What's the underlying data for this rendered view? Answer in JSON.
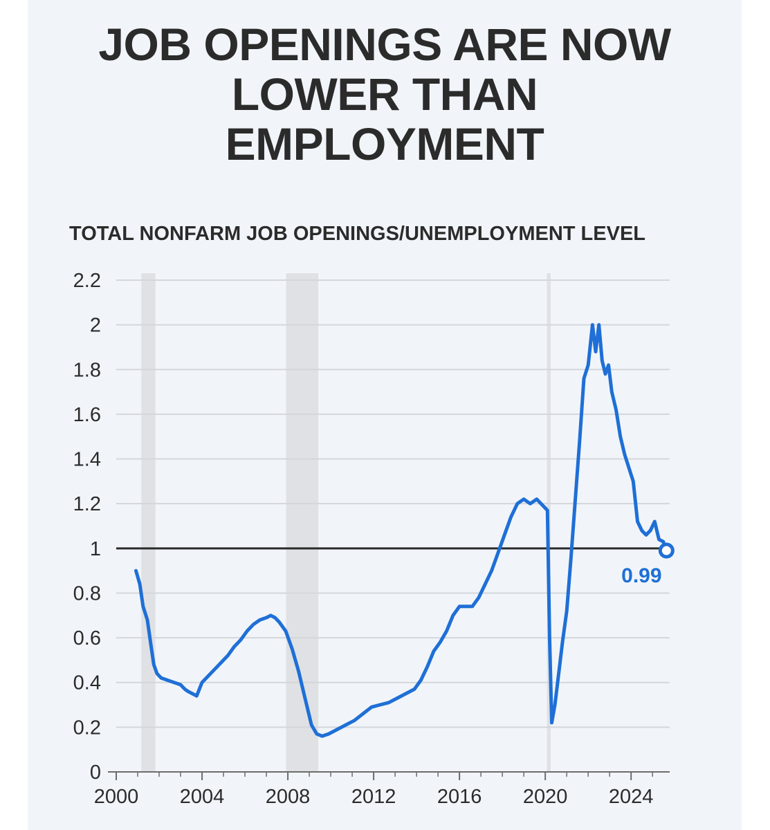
{
  "title_line1": "JOB OPENINGS ARE NOW",
  "title_line2": "LOWER THAN",
  "title_line3": "EMPLOYMENT",
  "subtitle": "TOTAL NONFARM JOB OPENINGS/UNEMPLOYMENT LEVEL",
  "colors": {
    "line": "#1f6fd6",
    "reference_line": "#2b2b2b",
    "recession": "#dfe1e4",
    "grid": "#d4d6da",
    "text": "#2b2b2b",
    "background": "#f1f5f9"
  },
  "chart_data": {
    "type": "line",
    "title": "JOB OPENINGS ARE NOW LOWER THAN EMPLOYMENT",
    "subtitle": "TOTAL NONFARM JOB OPENINGS/UNEMPLOYMENT LEVEL",
    "xlabel": "",
    "ylabel": "",
    "xlim": [
      2000,
      2025.8
    ],
    "ylim": [
      0,
      2.2
    ],
    "x_ticks": [
      "2000",
      "2004",
      "2008",
      "2012",
      "2016",
      "2020",
      "2024"
    ],
    "y_ticks": [
      "0",
      "0.2",
      "0.4",
      "0.6",
      "0.8",
      "1",
      "1.2",
      "1.4",
      "1.6",
      "1.8",
      "2",
      "2.2"
    ],
    "grid": true,
    "reference_line": 1,
    "recession_shading": [
      [
        2001.17,
        2001.83
      ],
      [
        2007.92,
        2009.42
      ],
      [
        2020.08,
        2020.25
      ]
    ],
    "end_label": "0.99",
    "series": [
      {
        "x": [
          2000.92,
          2001.1,
          2001.25,
          2001.45,
          2001.6,
          2001.75,
          2001.9,
          2002.1,
          2002.4,
          2002.7,
          2003.0,
          2003.2,
          2003.35,
          2003.55,
          2003.75,
          2004.0,
          2004.3,
          2004.6,
          2004.9,
          2005.2,
          2005.5,
          2005.8,
          2006.1,
          2006.4,
          2006.7,
          2007.0,
          2007.2,
          2007.4,
          2007.6,
          2007.9,
          2008.2,
          2008.5,
          2008.8,
          2009.1,
          2009.35,
          2009.6,
          2009.9,
          2010.3,
          2010.7,
          2011.1,
          2011.5,
          2011.9,
          2012.3,
          2012.7,
          2013.1,
          2013.5,
          2013.9,
          2014.2,
          2014.5,
          2014.8,
          2015.1,
          2015.4,
          2015.7,
          2016.0,
          2016.3,
          2016.6,
          2016.9,
          2017.2,
          2017.5,
          2017.8,
          2018.1,
          2018.4,
          2018.7,
          2019.0,
          2019.3,
          2019.6,
          2019.9,
          2020.1,
          2020.2,
          2020.3,
          2020.45,
          2020.6,
          2020.8,
          2021.0,
          2021.2,
          2021.4,
          2021.6,
          2021.8,
          2022.0,
          2022.2,
          2022.35,
          2022.5,
          2022.65,
          2022.8,
          2022.95,
          2023.1,
          2023.3,
          2023.5,
          2023.7,
          2023.9,
          2024.1,
          2024.3,
          2024.5,
          2024.7,
          2024.9,
          2025.1,
          2025.3,
          2025.5,
          2025.65
        ],
        "y": [
          0.9,
          0.84,
          0.74,
          0.68,
          0.58,
          0.48,
          0.44,
          0.42,
          0.41,
          0.4,
          0.39,
          0.37,
          0.36,
          0.35,
          0.34,
          0.4,
          0.43,
          0.46,
          0.49,
          0.52,
          0.56,
          0.59,
          0.63,
          0.66,
          0.68,
          0.69,
          0.7,
          0.69,
          0.67,
          0.63,
          0.55,
          0.45,
          0.33,
          0.21,
          0.17,
          0.16,
          0.17,
          0.19,
          0.21,
          0.23,
          0.26,
          0.29,
          0.3,
          0.31,
          0.33,
          0.35,
          0.37,
          0.41,
          0.47,
          0.54,
          0.58,
          0.63,
          0.7,
          0.74,
          0.74,
          0.74,
          0.78,
          0.84,
          0.9,
          0.98,
          1.06,
          1.14,
          1.2,
          1.22,
          1.2,
          1.22,
          1.19,
          1.17,
          0.6,
          0.22,
          0.3,
          0.42,
          0.58,
          0.72,
          0.96,
          1.22,
          1.48,
          1.76,
          1.82,
          2.0,
          1.88,
          2.0,
          1.84,
          1.78,
          1.82,
          1.7,
          1.62,
          1.5,
          1.42,
          1.36,
          1.3,
          1.12,
          1.08,
          1.06,
          1.08,
          1.12,
          1.04,
          1.03,
          0.99
        ]
      }
    ]
  }
}
